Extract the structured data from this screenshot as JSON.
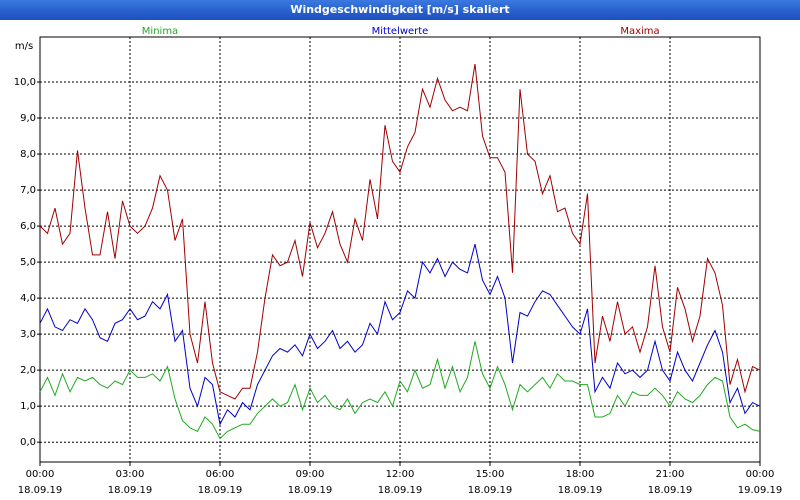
{
  "chart_data": {
    "type": "line",
    "title": "Windgeschwindigkeit [m/s] skaliert",
    "y_label": "m/s",
    "legend": "top",
    "grid": true,
    "xlim": [
      0,
      24
    ],
    "xticks": [
      {
        "value": 0,
        "label": "00:00\n18.09.19"
      },
      {
        "value": 3,
        "label": "03:00\n18.09.19"
      },
      {
        "value": 6,
        "label": "06:00\n18.09.19"
      },
      {
        "value": 9,
        "label": "09:00\n18.09.19"
      },
      {
        "value": 12,
        "label": "12:00\n18.09.19"
      },
      {
        "value": 15,
        "label": "15:00\n18.09.19"
      },
      {
        "value": 18,
        "label": "18:00\n18.09.19"
      },
      {
        "value": 21,
        "label": "21:00\n18.09.19"
      },
      {
        "value": 24,
        "label": "00:00\n19.09.19"
      }
    ],
    "ylim": [
      -0.55,
      11.25
    ],
    "yticks": [
      {
        "value": 0,
        "label": "0,0"
      },
      {
        "value": 1,
        "label": "1,0"
      },
      {
        "value": 2,
        "label": "2,0"
      },
      {
        "value": 3,
        "label": "3,0"
      },
      {
        "value": 4,
        "label": "4,0"
      },
      {
        "value": 5,
        "label": "5,0"
      },
      {
        "value": 6,
        "label": "6,0"
      },
      {
        "value": 7,
        "label": "7,0"
      },
      {
        "value": 8,
        "label": "8,0"
      },
      {
        "value": 9,
        "label": "9,0"
      },
      {
        "value": 10,
        "label": "10,0"
      }
    ],
    "x": [
      0,
      0.25,
      0.5,
      0.75,
      1,
      1.25,
      1.5,
      1.75,
      2,
      2.25,
      2.5,
      2.75,
      3,
      3.25,
      3.5,
      3.75,
      4,
      4.25,
      4.5,
      4.75,
      5,
      5.25,
      5.5,
      5.75,
      6,
      6.25,
      6.5,
      6.75,
      7,
      7.25,
      7.5,
      7.75,
      8,
      8.25,
      8.5,
      8.75,
      9,
      9.25,
      9.5,
      9.75,
      10,
      10.25,
      10.5,
      10.75,
      11,
      11.25,
      11.5,
      11.75,
      12,
      12.25,
      12.5,
      12.75,
      13,
      13.25,
      13.5,
      13.75,
      14,
      14.25,
      14.5,
      14.75,
      15,
      15.25,
      15.5,
      15.75,
      16,
      16.25,
      16.5,
      16.75,
      17,
      17.25,
      17.5,
      17.75,
      18,
      18.25,
      18.5,
      18.75,
      19,
      19.25,
      19.5,
      19.75,
      20,
      20.25,
      20.5,
      20.75,
      21,
      21.25,
      21.5,
      21.75,
      22,
      22.25,
      22.5,
      22.75,
      23,
      23.25,
      23.5,
      23.75,
      24
    ],
    "series": [
      {
        "name": "Minima",
        "color": "#1faa1f",
        "values": [
          1.4,
          1.8,
          1.3,
          1.9,
          1.4,
          1.8,
          1.7,
          1.8,
          1.6,
          1.5,
          1.7,
          1.6,
          2.0,
          1.8,
          1.8,
          1.9,
          1.7,
          2.1,
          1.2,
          0.6,
          0.4,
          0.3,
          0.7,
          0.5,
          0.1,
          0.3,
          0.4,
          0.5,
          0.5,
          0.8,
          1.0,
          1.2,
          1.0,
          1.1,
          1.6,
          0.9,
          1.5,
          1.1,
          1.3,
          1.0,
          0.9,
          1.2,
          0.8,
          1.1,
          1.2,
          1.1,
          1.4,
          1.0,
          1.7,
          1.4,
          2.0,
          1.5,
          1.6,
          2.3,
          1.5,
          2.1,
          1.4,
          1.8,
          2.8,
          1.9,
          1.5,
          2.1,
          1.6,
          0.9,
          1.6,
          1.4,
          1.6,
          1.8,
          1.5,
          1.9,
          1.7,
          1.7,
          1.6,
          1.6,
          0.7,
          0.7,
          0.8,
          1.3,
          1.0,
          1.4,
          1.3,
          1.3,
          1.5,
          1.3,
          1.0,
          1.4,
          1.2,
          1.1,
          1.3,
          1.6,
          1.8,
          1.7,
          0.7,
          0.4,
          0.5,
          0.35,
          0.3
        ]
      },
      {
        "name": "Mittelwerte",
        "color": "#0000c8",
        "values": [
          3.3,
          3.7,
          3.2,
          3.1,
          3.4,
          3.3,
          3.7,
          3.4,
          2.9,
          2.8,
          3.3,
          3.4,
          3.7,
          3.4,
          3.5,
          3.9,
          3.7,
          4.1,
          2.8,
          3.1,
          1.5,
          1.0,
          1.8,
          1.6,
          0.5,
          0.9,
          0.7,
          1.1,
          0.9,
          1.6,
          2.0,
          2.4,
          2.6,
          2.5,
          2.7,
          2.4,
          3.0,
          2.6,
          2.8,
          3.1,
          2.6,
          2.8,
          2.5,
          2.7,
          3.3,
          3.0,
          3.9,
          3.4,
          3.6,
          4.2,
          4.0,
          5.0,
          4.7,
          5.1,
          4.6,
          5.0,
          4.8,
          4.7,
          5.5,
          4.5,
          4.1,
          4.6,
          4.0,
          2.2,
          3.6,
          3.5,
          3.9,
          4.2,
          4.1,
          3.8,
          3.5,
          3.2,
          3.0,
          3.7,
          1.4,
          1.8,
          1.5,
          2.2,
          1.9,
          2.0,
          1.8,
          2.0,
          2.8,
          2.0,
          1.7,
          2.5,
          2.0,
          1.7,
          2.2,
          2.7,
          3.1,
          2.5,
          1.1,
          1.5,
          0.8,
          1.1,
          1.0
        ]
      },
      {
        "name": "Maxima",
        "color": "#a00000",
        "values": [
          6.0,
          5.8,
          6.5,
          5.5,
          5.8,
          8.1,
          6.5,
          5.2,
          5.2,
          6.4,
          5.1,
          6.7,
          6.0,
          5.8,
          6.0,
          6.5,
          7.4,
          7.0,
          5.6,
          6.2,
          3.0,
          2.2,
          3.9,
          2.2,
          1.4,
          1.3,
          1.2,
          1.5,
          1.5,
          2.5,
          4.0,
          5.2,
          4.9,
          5.0,
          5.6,
          4.6,
          6.1,
          5.4,
          5.8,
          6.4,
          5.5,
          5.0,
          6.2,
          5.6,
          7.3,
          6.2,
          8.8,
          7.8,
          7.5,
          8.2,
          8.6,
          9.8,
          9.3,
          10.1,
          9.5,
          9.2,
          9.3,
          9.2,
          10.5,
          8.5,
          7.9,
          7.9,
          7.5,
          4.7,
          9.8,
          8.0,
          7.8,
          6.9,
          7.4,
          6.4,
          6.5,
          5.8,
          5.5,
          6.9,
          2.2,
          3.5,
          2.8,
          3.9,
          3.0,
          3.2,
          2.5,
          3.2,
          4.9,
          3.2,
          2.5,
          4.3,
          3.7,
          2.8,
          3.5,
          5.1,
          4.7,
          3.8,
          1.6,
          2.3,
          1.4,
          2.1,
          2.0
        ]
      }
    ]
  }
}
